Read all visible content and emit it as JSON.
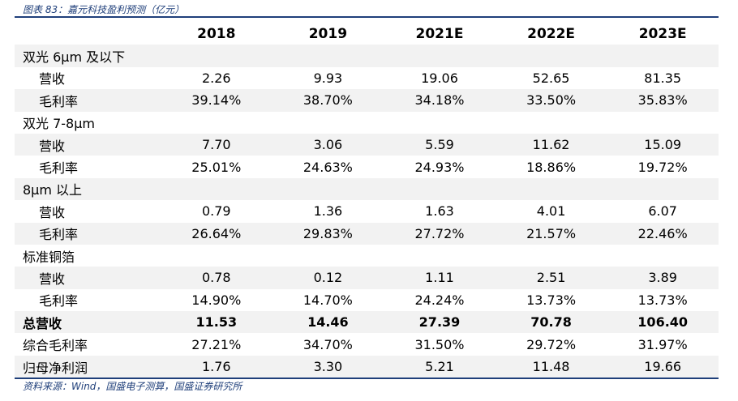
{
  "caption": "图表 83：嘉元科技盈利预测（亿元）",
  "source": "资料来源：Wind，国盛电子测算，国盛证券研究所",
  "header": [
    "",
    "2018",
    "2019",
    "2021E",
    "2022E",
    "2023E"
  ],
  "rows": [
    {
      "label": "双光 6μm 及以下",
      "values": [
        "",
        "",
        "",
        "",
        ""
      ],
      "type": "section"
    },
    {
      "label": "营收",
      "values": [
        "2.26",
        "9.93",
        "19.06",
        "52.65",
        "81.35"
      ],
      "type": "sub"
    },
    {
      "label": "毛利率",
      "values": [
        "39.14%",
        "38.70%",
        "34.18%",
        "33.50%",
        "35.83%"
      ],
      "type": "sub"
    },
    {
      "label": "双光 7-8μm",
      "values": [
        "",
        "",
        "",
        "",
        ""
      ],
      "type": "section"
    },
    {
      "label": "营收",
      "values": [
        "7.70",
        "3.06",
        "5.59",
        "11.62",
        "15.09"
      ],
      "type": "sub"
    },
    {
      "label": "毛利率",
      "values": [
        "25.01%",
        "24.63%",
        "24.93%",
        "18.86%",
        "19.72%"
      ],
      "type": "sub"
    },
    {
      "label": "8μm 以上",
      "values": [
        "",
        "",
        "",
        "",
        ""
      ],
      "type": "section"
    },
    {
      "label": "营收",
      "values": [
        "0.79",
        "1.36",
        "1.63",
        "4.01",
        "6.07"
      ],
      "type": "sub"
    },
    {
      "label": "毛利率",
      "values": [
        "26.64%",
        "29.83%",
        "27.72%",
        "21.57%",
        "22.46%"
      ],
      "type": "sub"
    },
    {
      "label": "标准铜箔",
      "values": [
        "",
        "",
        "",
        "",
        ""
      ],
      "type": "section"
    },
    {
      "label": "营收",
      "values": [
        "0.78",
        "0.12",
        "1.11",
        "2.51",
        "3.89"
      ],
      "type": "sub"
    },
    {
      "label": "毛利率",
      "values": [
        "14.90%",
        "14.70%",
        "24.24%",
        "13.73%",
        "13.73%"
      ],
      "type": "sub"
    },
    {
      "label": "总营收",
      "values": [
        "11.53",
        "14.46",
        "27.39",
        "70.78",
        "106.40"
      ],
      "type": "bold"
    },
    {
      "label": "综合毛利率",
      "values": [
        "27.21%",
        "34.70%",
        "31.50%",
        "29.72%",
        "31.97%"
      ],
      "type": "plain"
    },
    {
      "label": "归母净利润",
      "values": [
        "1.76",
        "3.30",
        "5.21",
        "11.48",
        "19.66"
      ],
      "type": "plain"
    }
  ]
}
